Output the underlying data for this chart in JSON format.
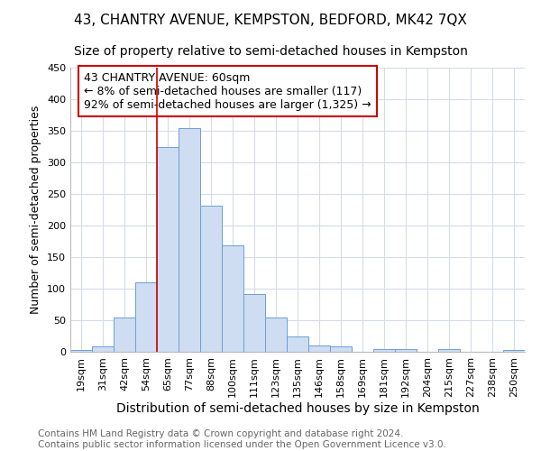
{
  "title1": "43, CHANTRY AVENUE, KEMPSTON, BEDFORD, MK42 7QX",
  "title2": "Size of property relative to semi-detached houses in Kempston",
  "xlabel": "Distribution of semi-detached houses by size in Kempston",
  "ylabel": "Number of semi-detached properties",
  "annotation_line1": "43 CHANTRY AVENUE: 60sqm",
  "annotation_line2": "← 8% of semi-detached houses are smaller (117)",
  "annotation_line3": "92% of semi-detached houses are larger (1,325) →",
  "footer1": "Contains HM Land Registry data © Crown copyright and database right 2024.",
  "footer2": "Contains public sector information licensed under the Open Government Licence v3.0.",
  "bar_labels": [
    "19sqm",
    "31sqm",
    "42sqm",
    "54sqm",
    "65sqm",
    "77sqm",
    "88sqm",
    "100sqm",
    "111sqm",
    "123sqm",
    "135sqm",
    "146sqm",
    "158sqm",
    "169sqm",
    "181sqm",
    "192sqm",
    "204sqm",
    "215sqm",
    "227sqm",
    "238sqm",
    "250sqm"
  ],
  "bar_values": [
    3,
    8,
    55,
    110,
    325,
    355,
    232,
    168,
    91,
    55,
    25,
    10,
    9,
    0,
    5,
    5,
    0,
    5,
    0,
    0,
    3
  ],
  "bar_color": "#cfddf2",
  "bar_edge_color": "#6b9fd4",
  "vline_x": 3.5,
  "ylim": [
    0,
    450
  ],
  "yticks": [
    0,
    50,
    100,
    150,
    200,
    250,
    300,
    350,
    400,
    450
  ],
  "grid_color": "#d4dce8",
  "annotation_box_edge_color": "#cc0000",
  "vline_color": "#cc0000",
  "title1_fontsize": 11,
  "title2_fontsize": 10,
  "xlabel_fontsize": 10,
  "ylabel_fontsize": 9,
  "footer_fontsize": 7.5,
  "tick_fontsize": 8,
  "annotation_fontsize": 9
}
